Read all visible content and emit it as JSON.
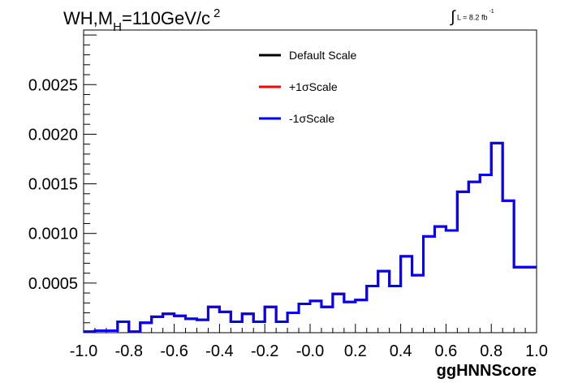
{
  "chart_data": {
    "type": "line",
    "title_parts": {
      "main": "WH,M",
      "sub": "H",
      "eq": "=110GeV/c",
      "sup": "2"
    },
    "lumi_parts": {
      "sym": "∫",
      "text": "L = 8.2 fb",
      "sup": "-1"
    },
    "xlabel": "ggHNNScore",
    "ylabel": "",
    "xlim": [
      -1.0,
      1.0
    ],
    "ylim": [
      0,
      0.00305
    ],
    "x_ticks": [
      "-1.0",
      "-0.8",
      "-0.6",
      "-0.4",
      "-0.2",
      "-0.0",
      "0.2",
      "0.4",
      "0.6",
      "0.8",
      "1.0"
    ],
    "x_tick_values": [
      -1.0,
      -0.8,
      -0.6,
      -0.4,
      -0.2,
      0.0,
      0.2,
      0.4,
      0.6,
      0.8,
      1.0
    ],
    "y_ticks": [
      "0.0005",
      "0.0010",
      "0.0015",
      "0.0020",
      "0.0025"
    ],
    "y_tick_values": [
      0.0005,
      0.001,
      0.0015,
      0.002,
      0.0025
    ],
    "grid": false,
    "legend_position": "top-center",
    "bin_edges": [
      -1.0,
      -0.95,
      -0.9,
      -0.85,
      -0.8,
      -0.75,
      -0.7,
      -0.65,
      -0.6,
      -0.55,
      -0.5,
      -0.45,
      -0.4,
      -0.35,
      -0.3,
      -0.25,
      -0.2,
      -0.15,
      -0.1,
      -0.05,
      0.0,
      0.05,
      0.1,
      0.15,
      0.2,
      0.25,
      0.3,
      0.35,
      0.4,
      0.45,
      0.5,
      0.55,
      0.6,
      0.65,
      0.7,
      0.75,
      0.8,
      0.85,
      0.9,
      0.95,
      1.0
    ],
    "series": [
      {
        "name": "Default Scale",
        "color": "#000000",
        "values": [
          1e-05,
          2e-05,
          2e-05,
          0.00011,
          1e-05,
          0.0001,
          0.00016,
          0.00019,
          0.00017,
          0.00014,
          0.00013,
          0.00026,
          0.00021,
          0.00011,
          0.00019,
          0.00011,
          0.00026,
          0.00011,
          0.0002,
          0.00029,
          0.00032,
          0.00026,
          0.00039,
          0.00031,
          0.00033,
          0.00047,
          0.00062,
          0.00047,
          0.00077,
          0.00058,
          0.00097,
          0.00107,
          0.00103,
          0.00142,
          0.00152,
          0.00159,
          0.00191,
          0.00133,
          0.00066,
          0.00066
        ]
      },
      {
        "name": "+1σScale",
        "color": "#ff0000",
        "values": [
          1e-05,
          2e-05,
          2e-05,
          0.00011,
          1e-05,
          0.0001,
          0.00016,
          0.00019,
          0.00017,
          0.00014,
          0.00013,
          0.00026,
          0.00021,
          0.00011,
          0.00019,
          0.00011,
          0.00026,
          0.00011,
          0.0002,
          0.00029,
          0.00032,
          0.00026,
          0.00039,
          0.00031,
          0.00033,
          0.00047,
          0.00062,
          0.00047,
          0.00077,
          0.00058,
          0.00097,
          0.00107,
          0.00103,
          0.00142,
          0.00152,
          0.00159,
          0.00191,
          0.00133,
          0.00066,
          0.00066
        ]
      },
      {
        "name": "-1σScale",
        "color": "#0000ff",
        "values": [
          1e-05,
          2e-05,
          2e-05,
          0.00011,
          1e-05,
          0.0001,
          0.00016,
          0.00019,
          0.00017,
          0.00014,
          0.00013,
          0.00026,
          0.00021,
          0.00011,
          0.00019,
          0.00011,
          0.00026,
          0.00011,
          0.0002,
          0.00029,
          0.00032,
          0.00026,
          0.00039,
          0.00031,
          0.00033,
          0.00047,
          0.00062,
          0.00047,
          0.00077,
          0.00058,
          0.00097,
          0.00107,
          0.00103,
          0.00142,
          0.00152,
          0.00159,
          0.00191,
          0.00133,
          0.00066,
          0.00066
        ]
      }
    ]
  }
}
